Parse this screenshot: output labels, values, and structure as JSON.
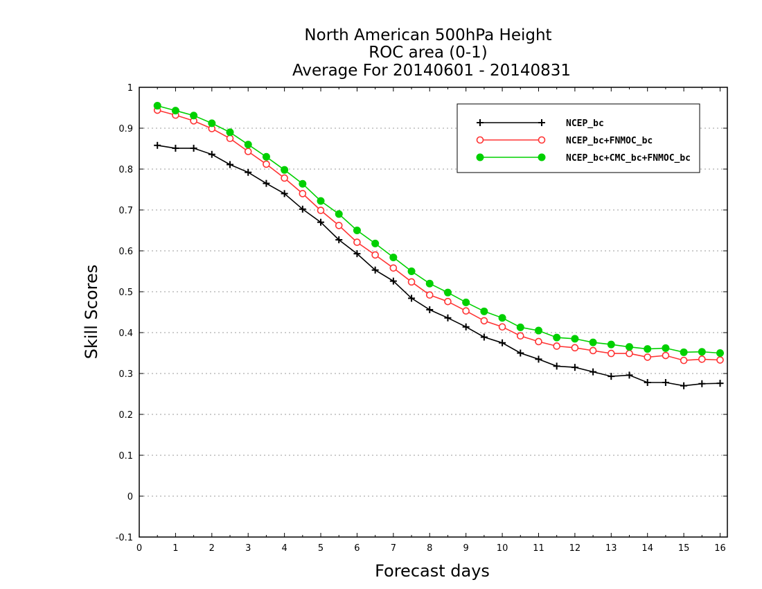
{
  "chart_data": {
    "type": "line",
    "title_lines": [
      "North American 500hPa Height",
      "ROC area (0-1)",
      "Average For 20140601 - 20140831"
    ],
    "xlabel": "Forecast days",
    "ylabel": "Skill Scores",
    "xlim": [
      0,
      16.2
    ],
    "ylim": [
      -0.1,
      1
    ],
    "x_ticks": [
      0,
      1,
      2,
      3,
      4,
      5,
      6,
      7,
      8,
      9,
      10,
      11,
      12,
      13,
      14,
      15,
      16
    ],
    "y_ticks": [
      -0.1,
      0,
      0.1,
      0.2,
      0.3,
      0.4,
      0.5,
      0.6,
      0.7,
      0.8,
      0.9,
      1
    ],
    "y_tick_labels": [
      "-0.1",
      "0",
      "0.1",
      "0.2",
      "0.3",
      "0.4",
      "0.5",
      "0.6",
      "0.7",
      "0.8",
      "0.9",
      "1"
    ],
    "grid": "horizontal-dotted",
    "legend_position": "top-right",
    "x": [
      0.5,
      1,
      1.5,
      2,
      2.5,
      3,
      3.5,
      4,
      4.5,
      5,
      5.5,
      6,
      6.5,
      7,
      7.5,
      8,
      8.5,
      9,
      9.5,
      10,
      10.5,
      11,
      11.5,
      12,
      12.5,
      13,
      13.5,
      14,
      14.5,
      15,
      15.5,
      16
    ],
    "series": [
      {
        "name": "NCEP_bc",
        "color": "#000000",
        "marker": "plus",
        "values": [
          0.858,
          0.851,
          0.851,
          0.836,
          0.811,
          0.792,
          0.765,
          0.74,
          0.702,
          0.67,
          0.627,
          0.593,
          0.553,
          0.526,
          0.484,
          0.456,
          0.436,
          0.414,
          0.389,
          0.375,
          0.35,
          0.335,
          0.318,
          0.315,
          0.304,
          0.293,
          0.296,
          0.278,
          0.278,
          0.27,
          0.275,
          0.276
        ]
      },
      {
        "name": "NCEP_bc+FNMOC_bc",
        "color": "#ff3333",
        "marker": "open-circle",
        "values": [
          0.944,
          0.932,
          0.918,
          0.899,
          0.875,
          0.843,
          0.812,
          0.778,
          0.74,
          0.699,
          0.662,
          0.621,
          0.59,
          0.558,
          0.524,
          0.492,
          0.476,
          0.453,
          0.429,
          0.414,
          0.392,
          0.378,
          0.367,
          0.363,
          0.356,
          0.349,
          0.349,
          0.34,
          0.344,
          0.332,
          0.335,
          0.333
        ]
      },
      {
        "name": "NCEP_bc+CMC_bc+FNMOC_bc",
        "color": "#00d000",
        "marker": "filled-circle",
        "values": [
          0.955,
          0.943,
          0.931,
          0.912,
          0.89,
          0.86,
          0.83,
          0.798,
          0.764,
          0.722,
          0.69,
          0.65,
          0.618,
          0.584,
          0.55,
          0.52,
          0.498,
          0.474,
          0.452,
          0.436,
          0.413,
          0.405,
          0.388,
          0.385,
          0.376,
          0.371,
          0.365,
          0.36,
          0.362,
          0.352,
          0.353,
          0.35
        ]
      }
    ]
  }
}
